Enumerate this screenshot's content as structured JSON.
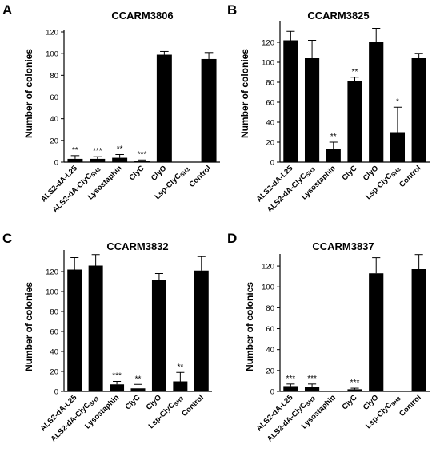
{
  "figure": {
    "panels": [
      {
        "letter": "A"
      },
      {
        "letter": "B"
      },
      {
        "letter": "C"
      },
      {
        "letter": "D"
      }
    ]
  },
  "chart_data": [
    {
      "type": "bar",
      "title": "CCARM3806",
      "ylabel": "Number of colonies",
      "xlabel": "",
      "ylim": [
        0,
        120
      ],
      "yticks": [
        0,
        20,
        40,
        60,
        80,
        100,
        120
      ],
      "categories": [
        "ALS2-dA-L25",
        "ALS2-dA-ClyCSH3",
        "Lysostaphin",
        "ClyC",
        "ClyO",
        "Lsp-ClyCSH3",
        "Control"
      ],
      "values": [
        3,
        3,
        4,
        1,
        99,
        0,
        95
      ],
      "errors": [
        3,
        2,
        3,
        1,
        3,
        0,
        6
      ],
      "significance": [
        "**",
        "***",
        "**",
        "***",
        "",
        "",
        ""
      ],
      "grid": false
    },
    {
      "type": "bar",
      "title": "CCARM3825",
      "ylabel": "Number of colonies",
      "xlabel": "",
      "ylim": [
        0,
        140
      ],
      "yticks": [
        0,
        20,
        40,
        60,
        80,
        100,
        120
      ],
      "categories": [
        "ALS2-dA-L25",
        "ALS2-dA-ClyCSH3",
        "Lysostaphin",
        "ClyC",
        "ClyO",
        "Lsp-ClyCSH3",
        "Control"
      ],
      "values": [
        122,
        104,
        13,
        81,
        120,
        30,
        104
      ],
      "errors": [
        9,
        18,
        7,
        4,
        14,
        25,
        5
      ],
      "significance": [
        "",
        "",
        "**",
        "**",
        "",
        "*",
        ""
      ],
      "grid": false
    },
    {
      "type": "bar",
      "title": "CCARM3832",
      "ylabel": "Number of colonies",
      "xlabel": "",
      "ylim": [
        0,
        140
      ],
      "yticks": [
        0,
        20,
        40,
        60,
        80,
        100,
        120
      ],
      "categories": [
        "ALS2-dA-L25",
        "ALS2-dA-ClyCSH3",
        "Lysostaphin",
        "ClyC",
        "ClyO",
        "Lsp-ClyCSH3",
        "Control"
      ],
      "values": [
        122,
        126,
        7,
        3,
        112,
        10,
        121
      ],
      "errors": [
        12,
        11,
        3,
        4,
        6,
        9,
        14
      ],
      "significance": [
        "",
        "",
        "***",
        "**",
        "",
        "**",
        ""
      ],
      "grid": false
    },
    {
      "type": "bar",
      "title": "CCARM3837",
      "ylabel": "Number of colonies",
      "xlabel": "",
      "ylim": [
        0,
        130
      ],
      "yticks": [
        0,
        20,
        40,
        60,
        80,
        100,
        120
      ],
      "categories": [
        "ALS2-dA-L25",
        "ALS2-dA-ClyCSH3",
        "Lysostaphin",
        "ClyC",
        "ClyO",
        "Lsp-ClyCSH3",
        "Control"
      ],
      "values": [
        5,
        4,
        0,
        2,
        113,
        0,
        117
      ],
      "errors": [
        2,
        3,
        0,
        1,
        15,
        0,
        14
      ],
      "significance": [
        "***",
        "***",
        "",
        "***",
        "",
        "",
        ""
      ],
      "grid": false
    }
  ]
}
